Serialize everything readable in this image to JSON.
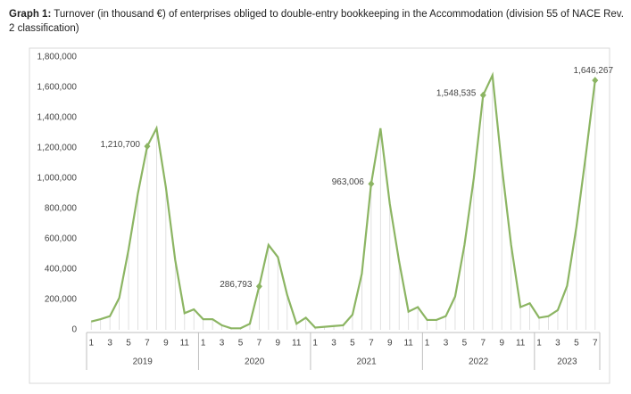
{
  "chart_data": {
    "type": "line",
    "title_label": "Graph 1:",
    "title": "Turnover (in thousand €) of enterprises obliged to double-entry bookkeeping in the Accommodation (division 55 of NACE Rev. 2 classification)",
    "categories": [
      "1",
      null,
      "3",
      null,
      "5",
      null,
      "7",
      null,
      "9",
      null,
      "11",
      null,
      "1",
      null,
      "3",
      null,
      "5",
      null,
      "7",
      null,
      "9",
      null,
      "11",
      null,
      "1",
      null,
      "3",
      null,
      "5",
      null,
      "7",
      null,
      "9",
      null,
      "11",
      null,
      "1",
      null,
      "3",
      null,
      "5",
      null,
      "7",
      null,
      "9",
      null,
      "11",
      null,
      "1",
      null,
      "3",
      null,
      "5",
      null,
      "7"
    ],
    "years": [
      "2019",
      "2020",
      "2021",
      "2022",
      "2023"
    ],
    "values": [
      55000,
      70000,
      90000,
      210000,
      530000,
      900000,
      1210700,
      1330000,
      940000,
      460000,
      110000,
      135000,
      70000,
      70000,
      30000,
      10000,
      10000,
      40000,
      286793,
      560000,
      480000,
      230000,
      40000,
      80000,
      15000,
      20000,
      25000,
      30000,
      100000,
      370000,
      963006,
      1330000,
      830000,
      450000,
      120000,
      150000,
      65000,
      65000,
      90000,
      220000,
      560000,
      1000000,
      1548535,
      1680000,
      1080000,
      560000,
      150000,
      175000,
      80000,
      90000,
      130000,
      290000,
      680000,
      1150000,
      1646267
    ],
    "value_labels": [
      null,
      null,
      null,
      null,
      null,
      null,
      "1,210,700",
      null,
      null,
      null,
      null,
      null,
      null,
      null,
      null,
      null,
      null,
      null,
      "286,793",
      null,
      null,
      null,
      null,
      null,
      null,
      null,
      null,
      null,
      null,
      null,
      "963,006",
      null,
      null,
      null,
      null,
      null,
      null,
      null,
      null,
      null,
      null,
      null,
      "1,548,535",
      null,
      null,
      null,
      null,
      null,
      null,
      null,
      null,
      null,
      null,
      null,
      "1,646,267"
    ],
    "color": "#8cb563",
    "ylim": [
      0,
      1800000
    ],
    "yticks": [
      0,
      {
        "value": 200000,
        "label": "200,000"
      },
      {
        "value": 400000,
        "label": "400,000"
      },
      {
        "value": 600000,
        "label": "600,000"
      },
      {
        "value": 800000,
        "label": "800,000"
      },
      {
        "value": 1000000,
        "label": "1,000,000"
      },
      {
        "value": 1200000,
        "label": "1,200,000"
      },
      {
        "value": 1400000,
        "label": "1,400,000"
      },
      {
        "value": 1600000,
        "label": "1,600,000"
      },
      {
        "value": 1800000,
        "label": "1,800,000"
      }
    ]
  }
}
